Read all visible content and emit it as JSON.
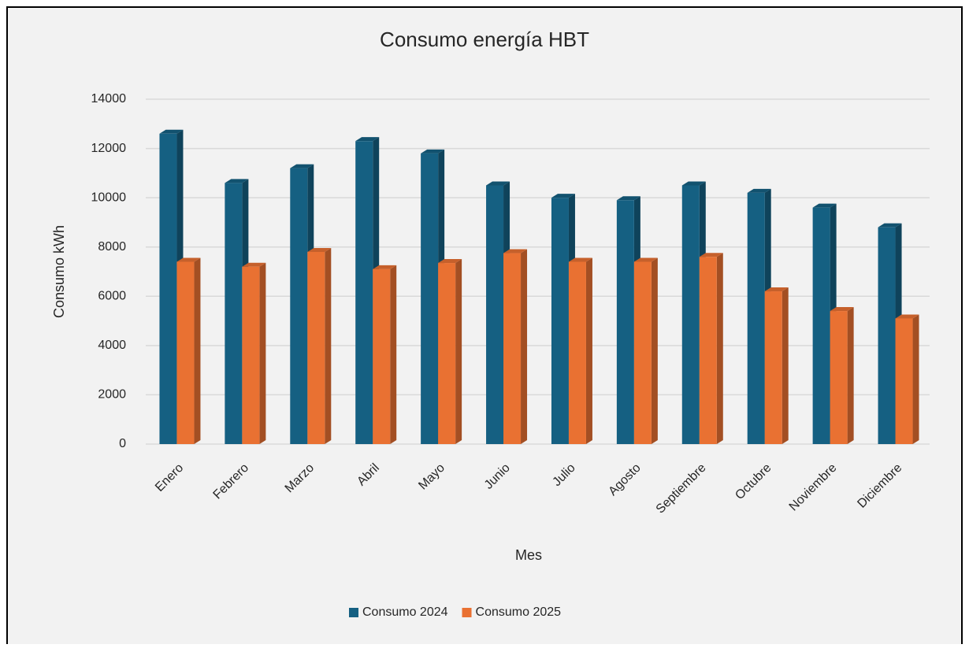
{
  "chart_data": {
    "type": "bar3d",
    "title": "Consumo energía HBT",
    "x_label": "Mes",
    "y_label": "Consumo kWh",
    "categories": [
      "Enero",
      "Febrero",
      "Marzo",
      "Abril",
      "Mayo",
      "Junio",
      "Julio",
      "Agosto",
      "Septiembre",
      "Octubre",
      "Noviembre",
      "Diciembre"
    ],
    "series": [
      {
        "name": "Consumo 2024",
        "color": "#156082",
        "values": [
          12600,
          10600,
          11200,
          12300,
          11800,
          10500,
          10000,
          9900,
          10500,
          10200,
          9600,
          8800
        ]
      },
      {
        "name": "Consumo 2025",
        "color": "#e97132",
        "values": [
          7400,
          7200,
          7800,
          7100,
          7350,
          7750,
          7400,
          7400,
          7600,
          6200,
          5400,
          5100
        ]
      }
    ],
    "ylim": [
      0,
      14000
    ],
    "yticks": [
      0,
      2000,
      4000,
      6000,
      8000,
      10000,
      12000,
      14000
    ],
    "grid": true,
    "legend": "bottom"
  }
}
